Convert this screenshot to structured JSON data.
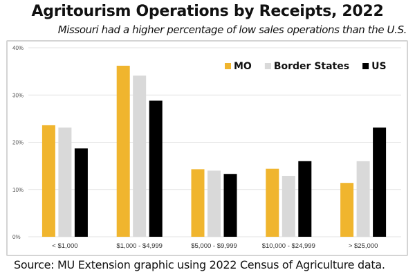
{
  "chart_data": {
    "type": "bar",
    "title": "Agritourism Operations by Receipts, 2022",
    "subtitle": "Missouri had a higher percentage of low sales operations than the U.S.",
    "xlabel": "",
    "ylabel": "",
    "ylim": [
      0,
      40
    ],
    "yticks": [
      0,
      10,
      20,
      30,
      40
    ],
    "ytick_labels": [
      "0%",
      "10%",
      "20%",
      "30%",
      "40%"
    ],
    "grid": true,
    "legend_position": "top-right",
    "categories": [
      "< $1,000",
      "$1,000 - $4,999",
      "$5,000 - $9,999",
      "$10,000 - $24,999",
      "> $25,000"
    ],
    "series": [
      {
        "name": "MO",
        "color": "#F0B52E",
        "values": [
          23.6,
          36.2,
          14.3,
          14.4,
          11.4
        ]
      },
      {
        "name": "Border States",
        "color": "#D9D9D9",
        "values": [
          23.1,
          34.1,
          14.0,
          12.9,
          16.0
        ]
      },
      {
        "name": "US",
        "color": "#000000",
        "values": [
          18.7,
          28.8,
          13.3,
          16.0,
          23.1
        ]
      }
    ],
    "source": "Source: MU Extension graphic using 2022 Census of Agriculture data."
  }
}
